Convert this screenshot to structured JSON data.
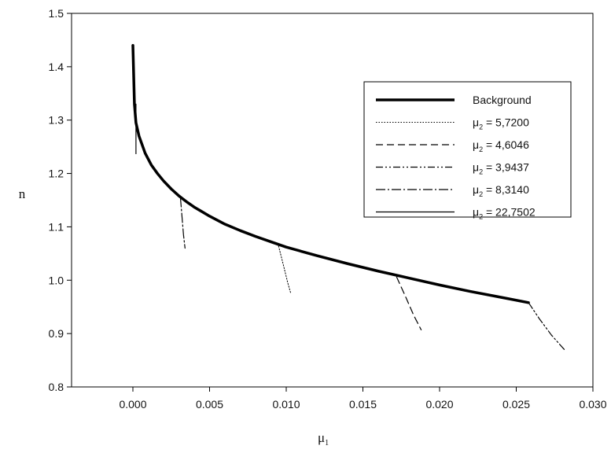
{
  "chart_data": {
    "type": "line",
    "xlabel": "μ1",
    "ylabel": "n",
    "xlim": [
      -0.004,
      0.03
    ],
    "ylim": [
      0.8,
      1.5
    ],
    "x_ticks": [
      "0.000",
      "0.005",
      "0.010",
      "0.015",
      "0.020",
      "0.025",
      "0.030"
    ],
    "y_ticks": [
      "0.8",
      "0.9",
      "1.0",
      "1.1",
      "1.2",
      "1.3",
      "1.4",
      "1.5"
    ],
    "grid": false,
    "legend_position": "top-right",
    "series": [
      {
        "name": "Background",
        "style": "thick-solid",
        "x": [
          0.0,
          0.0001,
          0.0002,
          0.0004,
          0.0008,
          0.0012,
          0.0016,
          0.002,
          0.0025,
          0.003,
          0.0035,
          0.004,
          0.005,
          0.006,
          0.007,
          0.008,
          0.009,
          0.01,
          0.011,
          0.012,
          0.014,
          0.016,
          0.018,
          0.02,
          0.022,
          0.024,
          0.0258
        ],
        "y": [
          1.44,
          1.33,
          1.295,
          1.27,
          1.238,
          1.216,
          1.2,
          1.186,
          1.171,
          1.158,
          1.147,
          1.137,
          1.12,
          1.105,
          1.093,
          1.082,
          1.072,
          1.062,
          1.054,
          1.046,
          1.031,
          1.017,
          1.004,
          0.991,
          0.979,
          0.968,
          0.958
        ]
      },
      {
        "name": "μ2 = 5,7200",
        "style": "dotted",
        "x": [
          0.0095,
          0.0098,
          0.0101,
          0.0103
        ],
        "y": [
          1.064,
          1.03,
          0.995,
          0.975
        ]
      },
      {
        "name": "μ2 = 4,6046",
        "style": "dashed",
        "x": [
          0.0172,
          0.0178,
          0.0183,
          0.0188
        ],
        "y": [
          1.006,
          0.968,
          0.935,
          0.907
        ]
      },
      {
        "name": "μ2 = 3,9437",
        "style": "dash-dot-dot",
        "x": [
          0.0258,
          0.0265,
          0.0273,
          0.0282
        ],
        "y": [
          0.958,
          0.928,
          0.897,
          0.868
        ]
      },
      {
        "name": "μ2 = 8,3140",
        "style": "dash-dot",
        "x": [
          0.0031,
          0.0032,
          0.0033,
          0.0034
        ],
        "y": [
          1.155,
          1.12,
          1.085,
          1.06
        ]
      },
      {
        "name": "μ2 = 22,7502",
        "style": "solid",
        "x": [
          0.0002,
          0.0002,
          0.0002
        ],
        "y": [
          1.33,
          1.29,
          1.237
        ]
      }
    ]
  }
}
